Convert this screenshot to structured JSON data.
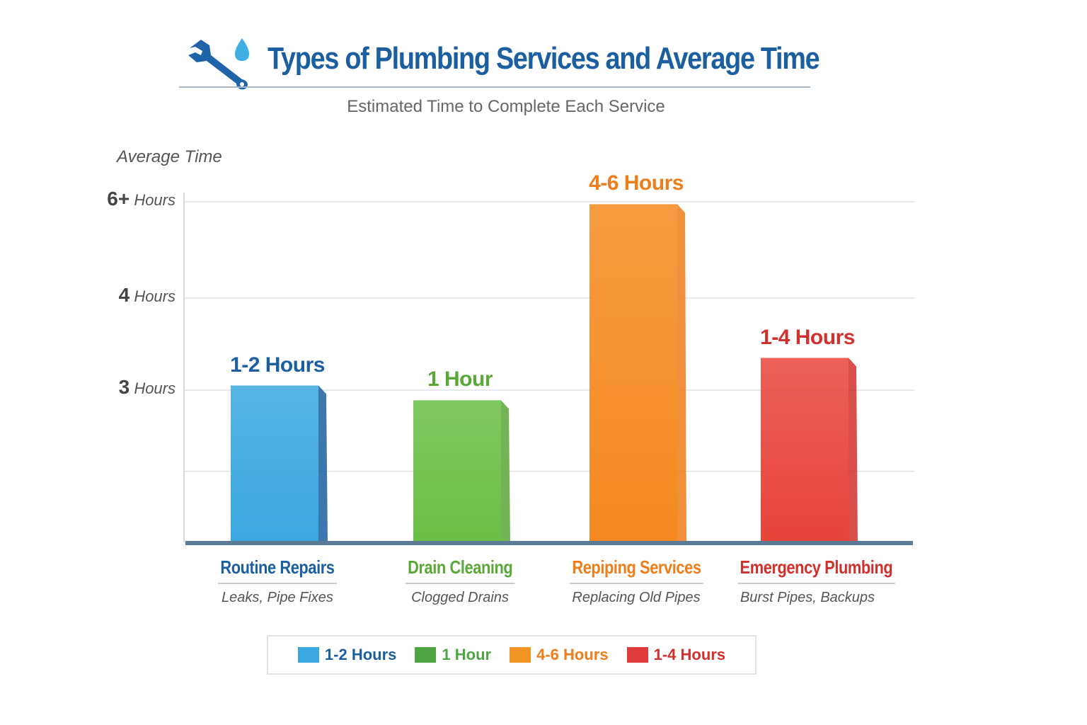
{
  "chart_data": {
    "type": "bar",
    "title": "Types of Plumbing Services and Average Time",
    "subtitle": "Estimated Time to Complete Each Service",
    "ylabel": "Average Time",
    "xlabel": "",
    "yticks": [
      {
        "value": 6,
        "num": "6+",
        "unit": "Hours"
      },
      {
        "value": 4,
        "num": "4",
        "unit": "Hours"
      },
      {
        "value": 3,
        "num": "3",
        "unit": "Hours"
      }
    ],
    "ylim": [
      0,
      6.1
    ],
    "grid": true,
    "legend_position": "bottom",
    "categories": [
      {
        "name": "Routine Repairs",
        "description": "Leaks, Pipe Fixes",
        "label": "1-2 Hours",
        "value": 3.05,
        "color": "#3aa8e0",
        "dark": "#1b5fa0"
      },
      {
        "name": "Drain Cleaning",
        "description": "Clogged Drains",
        "label": "1 Hour",
        "value": 2.8,
        "color": "#6abf45",
        "dark": "#5aa838"
      },
      {
        "name": "Repiping Services",
        "description": "Replacing Old Pipes",
        "label": "4-6 Hours",
        "value": 5.95,
        "color": "#f5891f",
        "dark": "#ee7d1a"
      },
      {
        "name": "Emergency Plumbing",
        "description": "Burst Pipes, Backups",
        "label": "1-4 Hours",
        "value": 3.35,
        "color": "#e8443a",
        "dark": "#d1302c"
      }
    ],
    "legend": [
      {
        "label": "1-2 Hours",
        "color": "#3aa8e0",
        "text_color": "#1b5fa0"
      },
      {
        "label": "1 Hour",
        "color": "#4fa444",
        "text_color": "#4fa444"
      },
      {
        "label": "4-6 Hours",
        "color": "#f29424",
        "text_color": "#ee7d1a"
      },
      {
        "label": "1-4 Hours",
        "color": "#e03a3a",
        "text_color": "#d1302c"
      }
    ]
  }
}
